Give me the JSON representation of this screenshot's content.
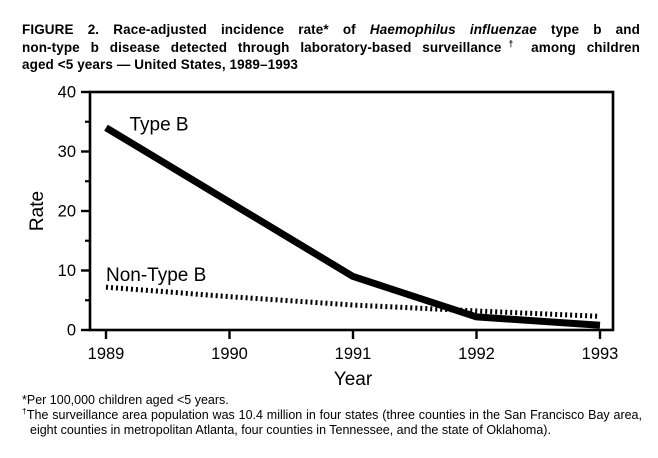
{
  "page": {
    "background": "#ffffff",
    "ink": "#000000"
  },
  "figure_title": {
    "lines": [
      {
        "segments": [
          {
            "t": "FIGURE 2. Race-adjusted incidence rate* of "
          },
          {
            "t": "Haemophilus influenzae",
            "italic": true
          },
          {
            "t": " type b and"
          }
        ]
      },
      {
        "segments": [
          {
            "t": "non-type b disease detected through laboratory-based surveillance"
          },
          {
            "t": "†",
            "sup": true
          },
          {
            "t": " among children"
          }
        ]
      },
      {
        "segments": [
          {
            "t": "aged <5 years — United States, 1989–1993"
          }
        ]
      }
    ]
  },
  "chart_data": {
    "type": "line",
    "title": "",
    "x": [
      1989,
      1990,
      1991,
      1992,
      1993
    ],
    "x_tick_labels": [
      "1989",
      "1990",
      "1991",
      "1992",
      "1993"
    ],
    "xlabel": "Year",
    "ylabel": "Rate",
    "ylim": [
      0,
      40
    ],
    "y_major_ticks": [
      0,
      10,
      20,
      30,
      40
    ],
    "y_minor_ticks": [
      5,
      15,
      25,
      35
    ],
    "grid": false,
    "legend_position": "inline-labels",
    "line_color": "#000000",
    "series": [
      {
        "name": "Type B",
        "values": [
          34,
          21.5,
          9,
          2.2,
          0.8
        ],
        "line_style": "solid",
        "label_at": {
          "x": 1989.19,
          "y": 33.5
        }
      },
      {
        "name": "Non-Type B",
        "values": [
          7.2,
          5.6,
          4.2,
          3.2,
          2.3
        ],
        "line_style": "dotted",
        "label_at": {
          "x": 1989.0,
          "y": 8.2
        }
      }
    ]
  },
  "footnotes": [
    {
      "marker": "*",
      "text": "Per 100,000 children aged <5 years."
    },
    {
      "marker": "†",
      "text": "The surveillance area population was 10.4 million in four states (three counties in the San Francisco Bay area, eight counties in metropolitan Atlanta, four counties in Tennessee, and the state of Oklahoma)."
    }
  ]
}
